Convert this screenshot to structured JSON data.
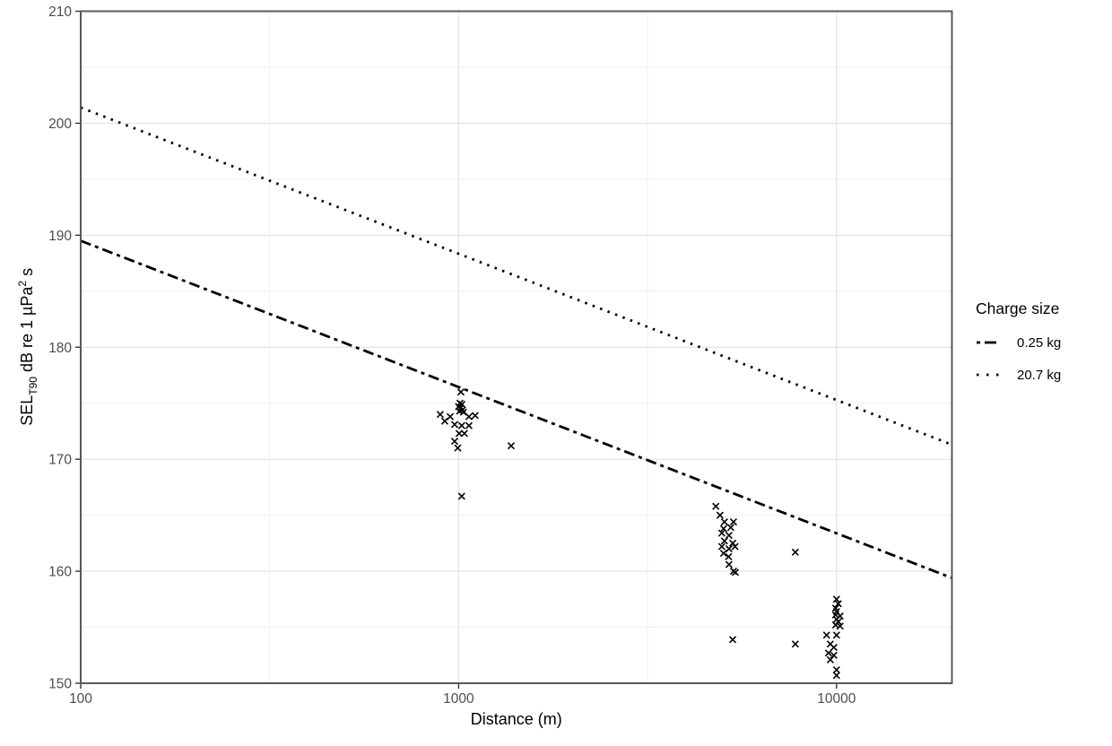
{
  "chart_data": {
    "type": "scatter",
    "xlabel": "Distance (m)",
    "ylabel_parts": {
      "p1": "SEL",
      "sub": "T90",
      "p2": " dB re 1 µPa",
      "sup": "2",
      "p3": " s"
    },
    "x_scale": "log10",
    "xlim": [
      100,
      20200
    ],
    "ylim": [
      150,
      210
    ],
    "x_ticks": {
      "values": [
        100,
        1000,
        10000
      ],
      "labels": [
        "100",
        "1000",
        "10000"
      ]
    },
    "y_ticks": {
      "values": [
        150,
        160,
        170,
        180,
        190,
        200,
        210
      ],
      "labels": [
        "150",
        "160",
        "170",
        "180",
        "190",
        "200",
        "210"
      ]
    },
    "x_minor": [
      316.23,
      3162.28
    ],
    "y_minor": [
      155,
      165,
      175,
      185,
      195,
      205
    ],
    "grid": true,
    "legend": {
      "title": "Charge size",
      "position": "right"
    },
    "series": [
      {
        "name": "0.25 kg",
        "style": "dashdot",
        "color": "#000000",
        "line": [
          [
            100,
            189.5
          ],
          [
            20200,
            159.4
          ]
        ]
      },
      {
        "name": "20.7 kg",
        "style": "dotted",
        "color": "#000000",
        "line": [
          [
            100,
            201.4
          ],
          [
            20200,
            171.3
          ]
        ]
      }
    ],
    "points": {
      "marker": "x",
      "color": "#000000",
      "data": [
        [
          1014,
          176.0
        ],
        [
          1008,
          175.0
        ],
        [
          1020,
          174.9
        ],
        [
          1000,
          174.7
        ],
        [
          1012,
          174.6
        ],
        [
          1024,
          174.4
        ],
        [
          1006,
          174.3
        ],
        [
          1030,
          174.2
        ],
        [
          894,
          174.0
        ],
        [
          950,
          173.8
        ],
        [
          1065,
          173.8
        ],
        [
          1106,
          173.9
        ],
        [
          919,
          173.4
        ],
        [
          976,
          173.1
        ],
        [
          1019,
          173.0
        ],
        [
          1065,
          173.0
        ],
        [
          1003,
          172.3
        ],
        [
          1036,
          172.3
        ],
        [
          976,
          171.6
        ],
        [
          995,
          171.0
        ],
        [
          1377,
          171.2
        ],
        [
          1019,
          166.7
        ],
        [
          4792,
          165.8
        ],
        [
          4917,
          165.0
        ],
        [
          5052,
          164.4
        ],
        [
          5338,
          164.4
        ],
        [
          5025,
          163.8
        ],
        [
          5251,
          163.9
        ],
        [
          4971,
          163.4
        ],
        [
          5193,
          163.2
        ],
        [
          5052,
          162.7
        ],
        [
          5313,
          162.5
        ],
        [
          4971,
          162.2
        ],
        [
          5388,
          162.2
        ],
        [
          5193,
          162.0
        ],
        [
          5025,
          161.6
        ],
        [
          5181,
          161.3
        ],
        [
          5193,
          160.6
        ],
        [
          5338,
          160.0
        ],
        [
          5400,
          159.9
        ],
        [
          7780,
          161.7
        ],
        [
          5313,
          153.9
        ],
        [
          7780,
          153.5
        ],
        [
          10000,
          157.5
        ],
        [
          10110,
          157.1
        ],
        [
          9945,
          156.7
        ],
        [
          10000,
          156.4
        ],
        [
          9945,
          156.1
        ],
        [
          10220,
          156.0
        ],
        [
          10000,
          155.7
        ],
        [
          10110,
          155.5
        ],
        [
          9945,
          155.2
        ],
        [
          10220,
          155.1
        ],
        [
          9412,
          154.3
        ],
        [
          10000,
          154.3
        ],
        [
          9630,
          153.5
        ],
        [
          9837,
          153.2
        ],
        [
          9521,
          152.7
        ],
        [
          9837,
          152.5
        ],
        [
          9630,
          152.1
        ],
        [
          10000,
          151.2
        ],
        [
          10000,
          150.7
        ]
      ]
    },
    "colors": {
      "grid_major": "#e3e3e3",
      "grid_minor": "#f0f0f0",
      "panel_border": "#595959",
      "tick": "#333333",
      "tick_label": "#4d4d4d",
      "data": "#000000"
    }
  }
}
